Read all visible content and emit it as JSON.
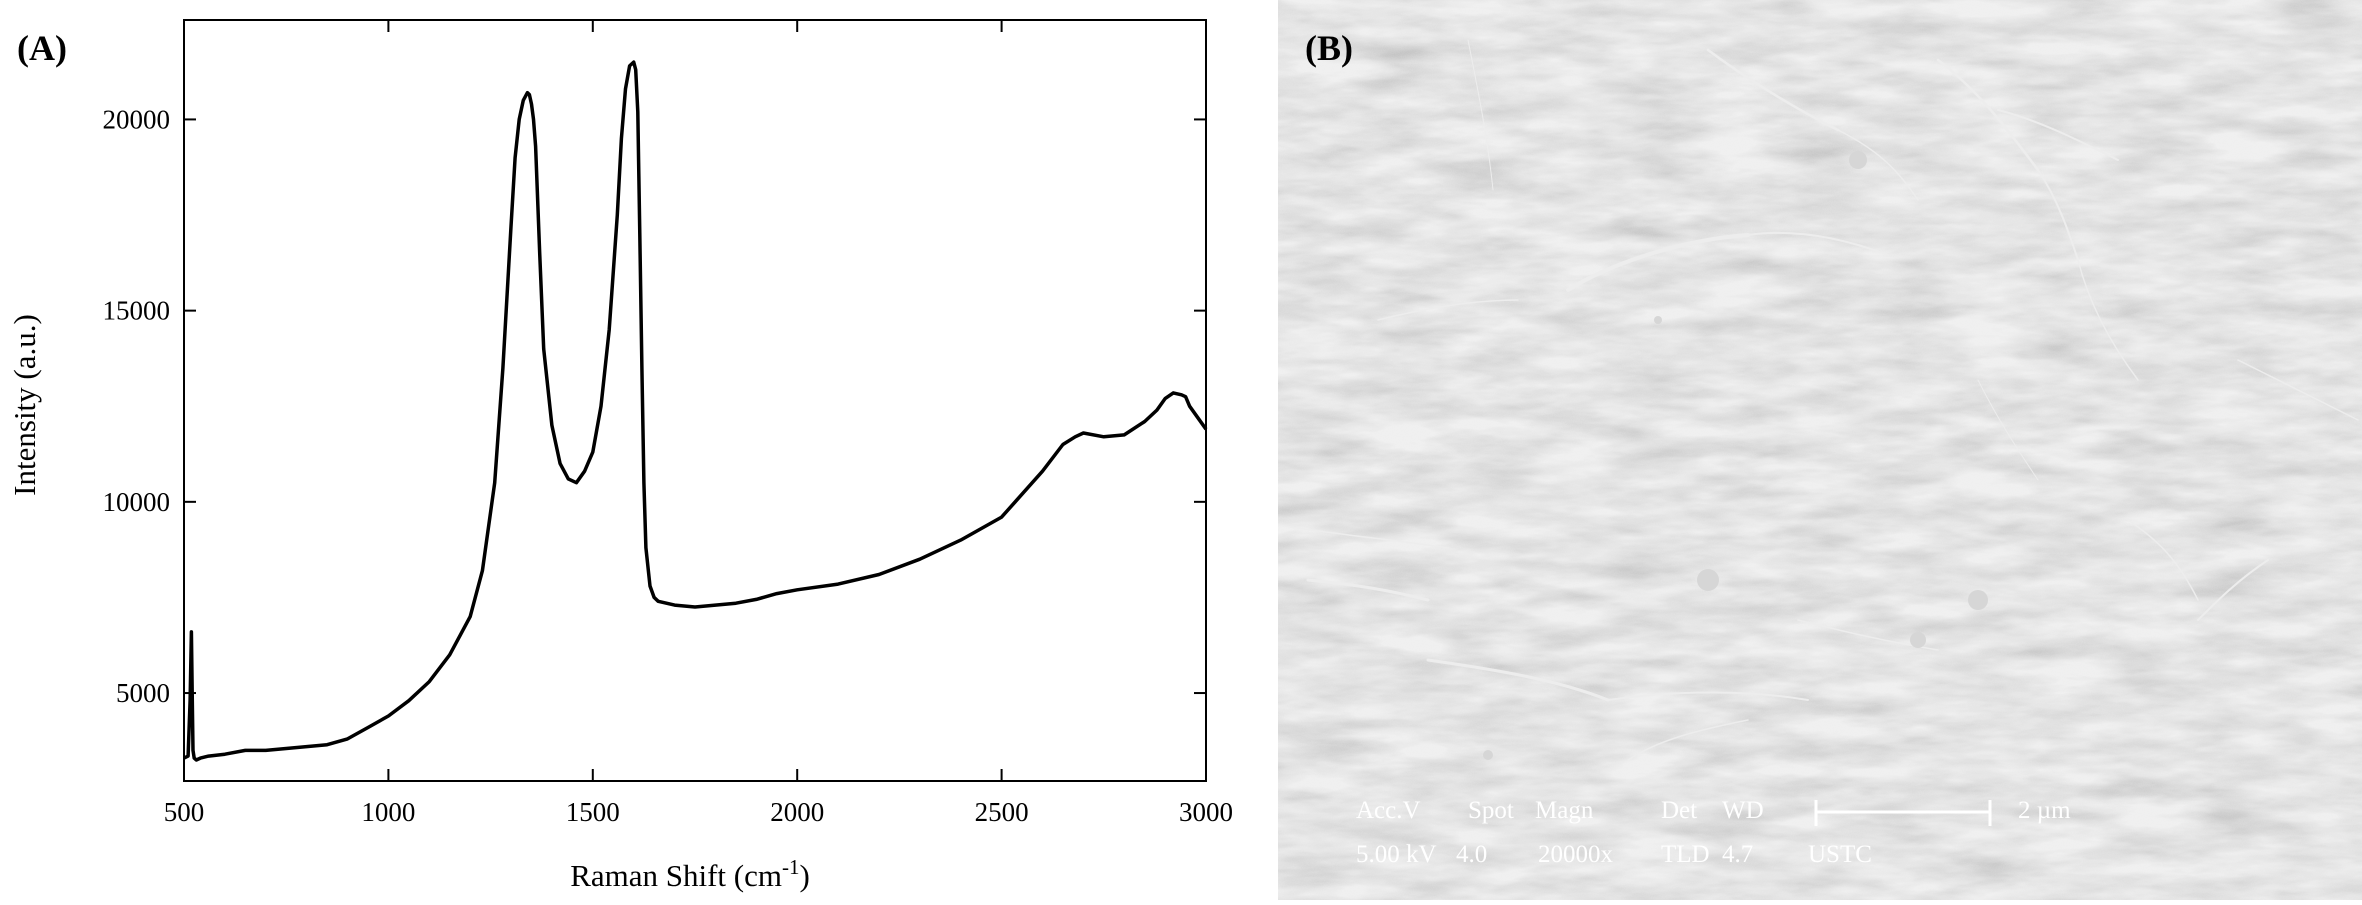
{
  "panel_a": {
    "label": "(A)",
    "chart_data": {
      "type": "line",
      "title": "",
      "xlabel": "Raman Shift (cm",
      "xlabel_sup": "-1",
      "xlabel_close": ")",
      "ylabel": "Intensity (a.u.)",
      "xlim": [
        500,
        3000
      ],
      "ylim": [
        2700,
        22600
      ],
      "x_ticks": [
        500,
        1000,
        1500,
        2000,
        2500,
        3000
      ],
      "y_ticks": [
        5000,
        10000,
        15000,
        20000
      ],
      "grid": false,
      "series": [
        {
          "x": [
            500,
            510,
            515,
            518,
            520,
            522,
            525,
            530,
            540,
            560,
            600,
            650,
            700,
            750,
            800,
            850,
            900,
            950,
            1000,
            1050,
            1100,
            1150,
            1200,
            1230,
            1260,
            1280,
            1300,
            1310,
            1320,
            1330,
            1340,
            1345,
            1350,
            1355,
            1360,
            1370,
            1380,
            1400,
            1420,
            1440,
            1460,
            1480,
            1500,
            1520,
            1540,
            1560,
            1570,
            1580,
            1590,
            1600,
            1605,
            1610,
            1615,
            1620,
            1625,
            1630,
            1640,
            1650,
            1660,
            1680,
            1700,
            1750,
            1800,
            1850,
            1900,
            1950,
            2000,
            2100,
            2200,
            2300,
            2400,
            2500,
            2550,
            2600,
            2650,
            2680,
            2700,
            2750,
            2800,
            2850,
            2880,
            2900,
            2920,
            2940,
            2950,
            2960,
            2980,
            3000
          ],
          "y": [
            3300,
            3350,
            4800,
            6600,
            5000,
            3500,
            3300,
            3250,
            3300,
            3350,
            3400,
            3500,
            3500,
            3550,
            3600,
            3650,
            3800,
            4100,
            4400,
            4800,
            5300,
            6000,
            7000,
            8200,
            10500,
            13500,
            17200,
            19000,
            20000,
            20500,
            20700,
            20650,
            20400,
            20000,
            19300,
            16500,
            14000,
            12000,
            11000,
            10600,
            10500,
            10800,
            11300,
            12500,
            14500,
            17500,
            19500,
            20800,
            21400,
            21500,
            21300,
            20200,
            17000,
            13500,
            10500,
            8800,
            7800,
            7500,
            7400,
            7350,
            7300,
            7250,
            7300,
            7350,
            7450,
            7600,
            7700,
            7850,
            8100,
            8500,
            9000,
            9600,
            10200,
            10800,
            11500,
            11700,
            11800,
            11700,
            11750,
            12100,
            12400,
            12700,
            12850,
            12800,
            12750,
            12500,
            12200,
            11900
          ]
        }
      ]
    }
  },
  "panel_b": {
    "label": "(B)",
    "info_headers": [
      "Acc.V",
      "Spot",
      "Magn",
      "Det",
      "WD"
    ],
    "info_values": [
      "5.00 kV",
      "4.0",
      "20000x",
      "TLD",
      "4.7"
    ],
    "scale_label": "2 µm",
    "institution": "USTC"
  }
}
